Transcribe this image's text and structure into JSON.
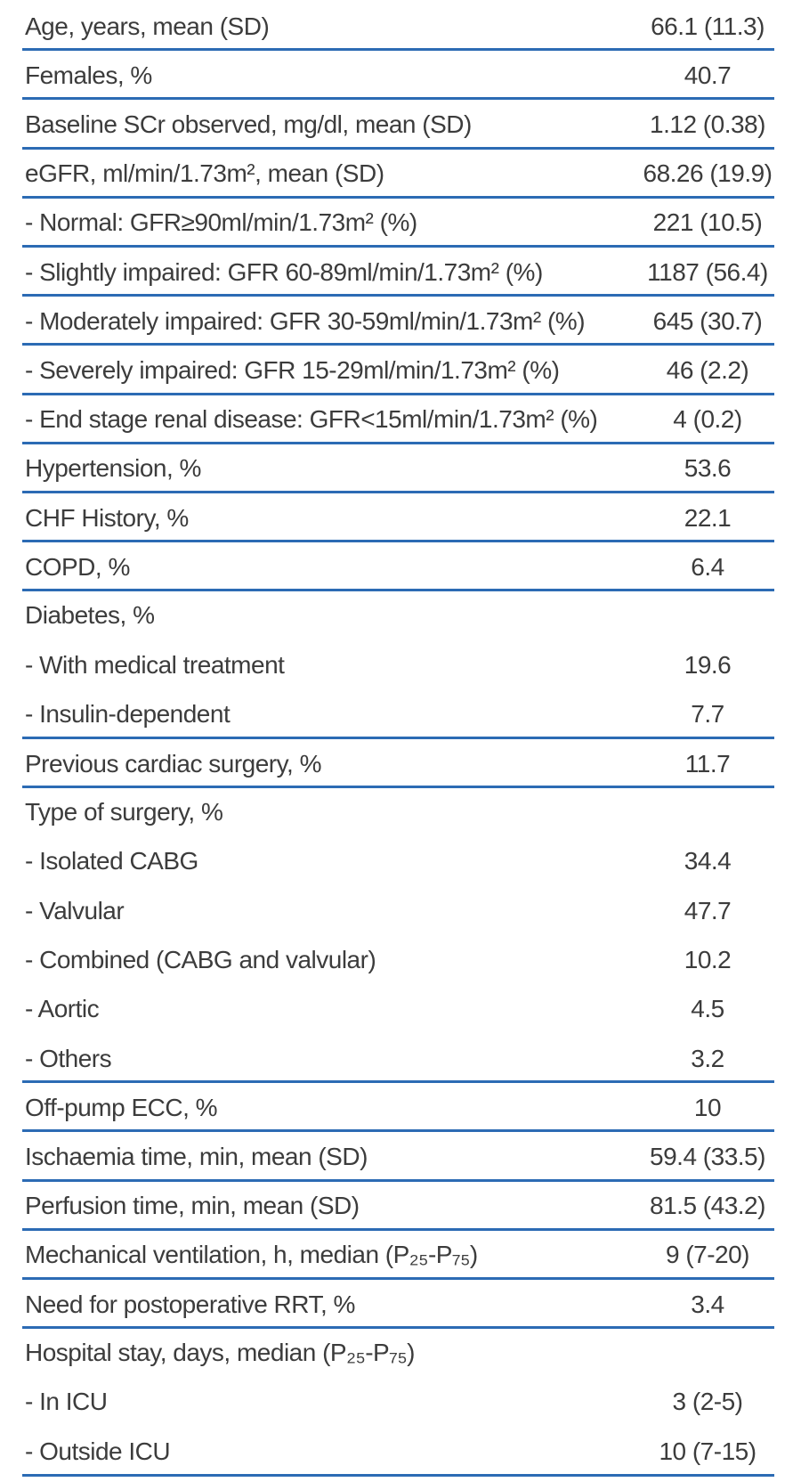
{
  "colors": {
    "rule_line": "#2c6bb4",
    "text": "#3c3c3c",
    "background": "#ffffff"
  },
  "table": {
    "rows": [
      {
        "label": "Age, years, mean (SD)",
        "value": "66.1 (11.3)"
      },
      {
        "label": "Females, %",
        "value": "40.7"
      },
      {
        "label": "Baseline SCr observed, mg/dl, mean (SD)",
        "value": "1.12 (0.38)"
      },
      {
        "label": "eGFR, ml/min/1.73m², mean (SD)",
        "value": "68.26 (19.9)"
      },
      {
        "label": "- Normal: GFR≥90ml/min/1.73m² (%)",
        "value": "221 (10.5)"
      },
      {
        "label": "- Slightly impaired: GFR 60-89ml/min/1.73m² (%)",
        "value": "1187 (56.4)"
      },
      {
        "label": "- Moderately impaired: GFR 30-59ml/min/1.73m² (%)",
        "value": "645 (30.7)"
      },
      {
        "label": "- Severely impaired: GFR 15-29ml/min/1.73m² (%)",
        "value": "46 (2.2)"
      },
      {
        "label": "- End stage renal disease: GFR<15ml/min/1.73m² (%)",
        "value": "4 (0.2)"
      },
      {
        "label": "Hypertension, %",
        "value": "53.6"
      },
      {
        "label": "CHF History, %",
        "value": "22.1"
      },
      {
        "label": "COPD, %",
        "value": "6.4"
      },
      {
        "label": "Diabetes, %",
        "value": ""
      },
      {
        "label": "- With medical treatment",
        "value": "19.6"
      },
      {
        "label": "- Insulin-dependent",
        "value": "7.7"
      },
      {
        "label": "Previous cardiac surgery, %",
        "value": "11.7"
      },
      {
        "label": "Type of surgery, %",
        "value": ""
      },
      {
        "label": "- Isolated CABG",
        "value": "34.4"
      },
      {
        "label": "- Valvular",
        "value": "47.7"
      },
      {
        "label": "- Combined (CABG and valvular)",
        "value": "10.2"
      },
      {
        "label": "- Aortic",
        "value": "4.5"
      },
      {
        "label": "- Others",
        "value": "3.2"
      },
      {
        "label": "Off-pump ECC, %",
        "value": "10"
      },
      {
        "label": "Ischaemia time, min, mean (SD)",
        "value": "59.4 (33.5)"
      },
      {
        "label": "Perfusion time, min, mean (SD)",
        "value": "81.5 (43.2)"
      },
      {
        "label": "Mechanical ventilation, h, median (P₂₅-P₇₅)",
        "value": "9 (7-20)"
      },
      {
        "label": "Need for postoperative RRT, %",
        "value": "3.4"
      },
      {
        "label": "Hospital stay, days, median (P₂₅-P₇₅)",
        "value": ""
      },
      {
        "label": "- In ICU",
        "value": "3 (2-5)"
      },
      {
        "label": "- Outside ICU",
        "value": "10 (7-15)"
      }
    ]
  }
}
